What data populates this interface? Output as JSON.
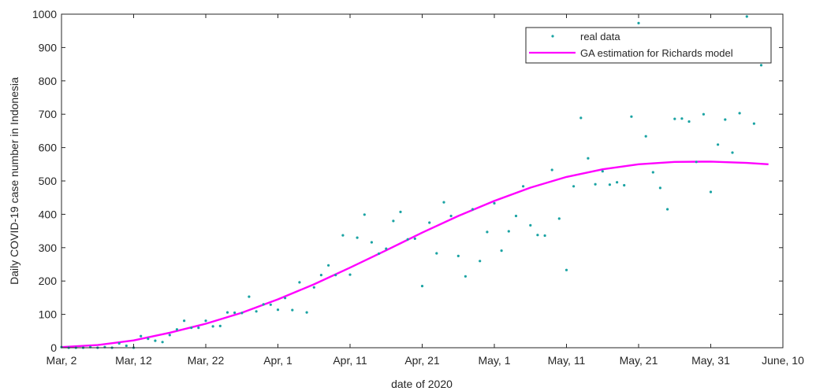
{
  "chart_data": {
    "type": "scatter",
    "xlabel": "date of 2020",
    "ylabel": "Daily COVID-19 case number in Indonesia",
    "xlim": [
      0,
      100
    ],
    "ylim": [
      0,
      1000
    ],
    "x_ticks": [
      {
        "x": 0,
        "label": "Mar, 2"
      },
      {
        "x": 10,
        "label": "Mar, 12"
      },
      {
        "x": 20,
        "label": "Mar, 22"
      },
      {
        "x": 30,
        "label": "Apr, 1"
      },
      {
        "x": 40,
        "label": "Apr, 11"
      },
      {
        "x": 50,
        "label": "Apr, 21"
      },
      {
        "x": 60,
        "label": "May, 1"
      },
      {
        "x": 70,
        "label": "May, 11"
      },
      {
        "x": 80,
        "label": "May, 21"
      },
      {
        "x": 90,
        "label": "May, 31"
      },
      {
        "x": 100,
        "label": "June, 10"
      }
    ],
    "y_ticks": [
      0,
      100,
      200,
      300,
      400,
      500,
      600,
      700,
      800,
      900,
      1000
    ],
    "grid": false,
    "legend_position": "top-right",
    "series": [
      {
        "name": "real data",
        "kind": "scatter",
        "color": "#1aa3a3",
        "points": [
          [
            0,
            2
          ],
          [
            1,
            0
          ],
          [
            2,
            0
          ],
          [
            3,
            0
          ],
          [
            4,
            2
          ],
          [
            5,
            0
          ],
          [
            6,
            2
          ],
          [
            7,
            0
          ],
          [
            8,
            13
          ],
          [
            9,
            6
          ],
          [
            10,
            0
          ],
          [
            11,
            35
          ],
          [
            12,
            27
          ],
          [
            13,
            21
          ],
          [
            14,
            17
          ],
          [
            15,
            38
          ],
          [
            16,
            55
          ],
          [
            17,
            81
          ],
          [
            18,
            60
          ],
          [
            19,
            60
          ],
          [
            20,
            81
          ],
          [
            21,
            64
          ],
          [
            22,
            65
          ],
          [
            23,
            106
          ],
          [
            24,
            105
          ],
          [
            25,
            104
          ],
          [
            26,
            153
          ],
          [
            27,
            109
          ],
          [
            28,
            130
          ],
          [
            29,
            129
          ],
          [
            30,
            114
          ],
          [
            31,
            149
          ],
          [
            32,
            113
          ],
          [
            33,
            196
          ],
          [
            34,
            106
          ],
          [
            35,
            181
          ],
          [
            36,
            218
          ],
          [
            37,
            247
          ],
          [
            38,
            218
          ],
          [
            39,
            337
          ],
          [
            40,
            219
          ],
          [
            41,
            330
          ],
          [
            42,
            399
          ],
          [
            43,
            316
          ],
          [
            44,
            282
          ],
          [
            45,
            297
          ],
          [
            46,
            380
          ],
          [
            47,
            407
          ],
          [
            48,
            325
          ],
          [
            49,
            327
          ],
          [
            50,
            185
          ],
          [
            51,
            375
          ],
          [
            52,
            283
          ],
          [
            53,
            436
          ],
          [
            54,
            395
          ],
          [
            55,
            275
          ],
          [
            56,
            214
          ],
          [
            57,
            415
          ],
          [
            58,
            260
          ],
          [
            59,
            347
          ],
          [
            60,
            433
          ],
          [
            61,
            291
          ],
          [
            62,
            349
          ],
          [
            63,
            395
          ],
          [
            64,
            484
          ],
          [
            65,
            367
          ],
          [
            66,
            338
          ],
          [
            67,
            336
          ],
          [
            68,
            533
          ],
          [
            69,
            387
          ],
          [
            70,
            233
          ],
          [
            71,
            484
          ],
          [
            72,
            689
          ],
          [
            73,
            568
          ],
          [
            74,
            490
          ],
          [
            75,
            529
          ],
          [
            76,
            489
          ],
          [
            77,
            496
          ],
          [
            78,
            487
          ],
          [
            79,
            693
          ],
          [
            80,
            973
          ],
          [
            81,
            634
          ],
          [
            82,
            526
          ],
          [
            83,
            479
          ],
          [
            84,
            415
          ],
          [
            85,
            686
          ],
          [
            86,
            687
          ],
          [
            87,
            678
          ],
          [
            88,
            557
          ],
          [
            89,
            700
          ],
          [
            90,
            467
          ],
          [
            91,
            609
          ],
          [
            92,
            684
          ],
          [
            93,
            585
          ],
          [
            94,
            703
          ],
          [
            95,
            993
          ],
          [
            96,
            672
          ],
          [
            97,
            847
          ]
        ]
      },
      {
        "name": "GA estimation for Richards model",
        "kind": "line",
        "color": "#ff00ff",
        "points": [
          [
            0,
            2
          ],
          [
            5,
            8
          ],
          [
            10,
            22
          ],
          [
            15,
            45
          ],
          [
            20,
            72
          ],
          [
            25,
            105
          ],
          [
            30,
            145
          ],
          [
            35,
            190
          ],
          [
            40,
            240
          ],
          [
            45,
            292
          ],
          [
            50,
            345
          ],
          [
            55,
            395
          ],
          [
            60,
            440
          ],
          [
            65,
            480
          ],
          [
            70,
            512
          ],
          [
            75,
            535
          ],
          [
            80,
            550
          ],
          [
            85,
            557
          ],
          [
            90,
            558
          ],
          [
            95,
            554
          ],
          [
            98,
            550
          ]
        ]
      }
    ]
  }
}
